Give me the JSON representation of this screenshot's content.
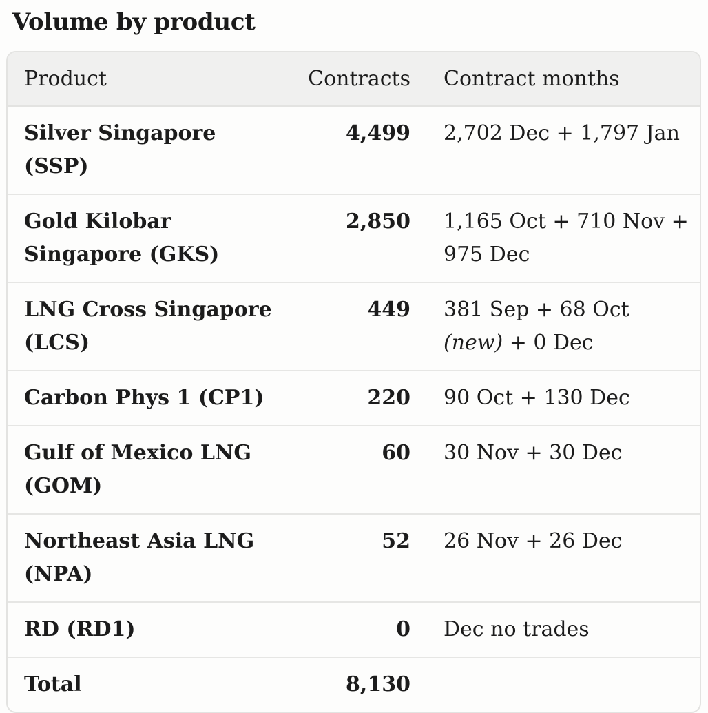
{
  "title": "Volume by product",
  "table": {
    "headers": {
      "product": "Product",
      "contracts": "Contracts",
      "months": "Contract months"
    },
    "rows": [
      {
        "product": "Silver Singapore (SSP)",
        "contracts": "4,499",
        "months_pre": "2,702 Dec + 1,797 Jan",
        "months_em": "",
        "months_post": ""
      },
      {
        "product": "Gold Kilobar Singapore (GKS)",
        "contracts": "2,850",
        "months_pre": "1,165 Oct + 710 Nov + 975 Dec",
        "months_em": "",
        "months_post": ""
      },
      {
        "product": "LNG Cross Singapore (LCS)",
        "contracts": "449",
        "months_pre": "381 Sep + 68 Oct ",
        "months_em": "(new)",
        "months_post": " + 0 Dec"
      },
      {
        "product": "Carbon Phys 1 (CP1)",
        "contracts": "220",
        "months_pre": "90 Oct + 130 Dec",
        "months_em": "",
        "months_post": ""
      },
      {
        "product": "Gulf of Mexico LNG (GOM)",
        "contracts": "60",
        "months_pre": "30 Nov + 30 Dec",
        "months_em": "",
        "months_post": ""
      },
      {
        "product": "Northeast Asia LNG (NPA)",
        "contracts": "52",
        "months_pre": "26 Nov + 26 Dec",
        "months_em": "",
        "months_post": ""
      },
      {
        "product": "RD (RD1)",
        "contracts": "0",
        "months_pre": "Dec no trades",
        "months_em": "",
        "months_post": ""
      },
      {
        "product": "Total",
        "contracts": "8,130",
        "months_pre": "",
        "months_em": "",
        "months_post": ""
      }
    ]
  }
}
